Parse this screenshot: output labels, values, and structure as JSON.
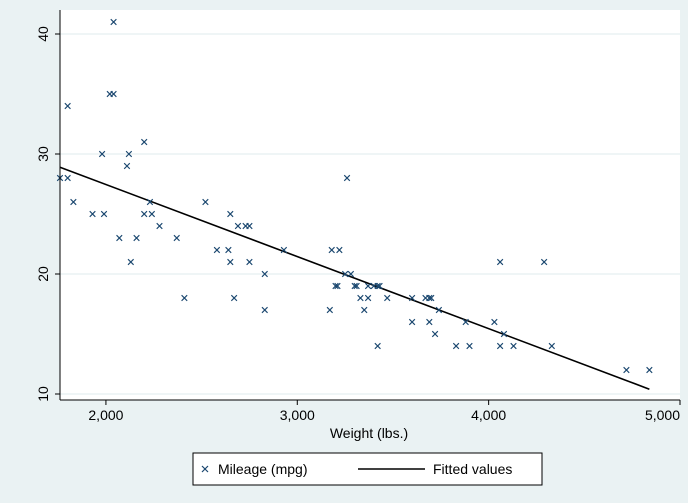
{
  "chart_data": {
    "type": "scatter",
    "xlabel": "Weight (lbs.)",
    "ylabel": "",
    "xlim": [
      1760,
      5000
    ],
    "ylim": [
      9.5,
      42
    ],
    "xticks": [
      2000,
      3000,
      4000,
      5000
    ],
    "xtick_labels": [
      "2,000",
      "3,000",
      "4,000",
      "5,000"
    ],
    "yticks": [
      10,
      20,
      30,
      40
    ],
    "ytick_labels": [
      "10",
      "20",
      "30",
      "40"
    ],
    "grid": true,
    "legend": "bottom",
    "series": [
      {
        "name": "Mileage (mpg)",
        "type": "scatter",
        "marker": "x",
        "color": "#1a476f",
        "points": [
          [
            1760,
            28
          ],
          [
            1800,
            28
          ],
          [
            1800,
            34
          ],
          [
            1830,
            26
          ],
          [
            1930,
            25
          ],
          [
            1980,
            30
          ],
          [
            1990,
            25
          ],
          [
            2020,
            35
          ],
          [
            2040,
            35
          ],
          [
            2040,
            41
          ],
          [
            2070,
            23
          ],
          [
            2110,
            29
          ],
          [
            2120,
            30
          ],
          [
            2130,
            21
          ],
          [
            2160,
            23
          ],
          [
            2200,
            31
          ],
          [
            2200,
            25
          ],
          [
            2230,
            26
          ],
          [
            2240,
            25
          ],
          [
            2280,
            24
          ],
          [
            2370,
            23
          ],
          [
            2410,
            18
          ],
          [
            2520,
            26
          ],
          [
            2580,
            22
          ],
          [
            2640,
            22
          ],
          [
            2650,
            25
          ],
          [
            2650,
            21
          ],
          [
            2670,
            18
          ],
          [
            2690,
            24
          ],
          [
            2730,
            24
          ],
          [
            2750,
            24
          ],
          [
            2750,
            21
          ],
          [
            2830,
            20
          ],
          [
            2830,
            17
          ],
          [
            2930,
            22
          ],
          [
            3170,
            17
          ],
          [
            3180,
            22
          ],
          [
            3200,
            19
          ],
          [
            3210,
            19
          ],
          [
            3220,
            22
          ],
          [
            3250,
            20
          ],
          [
            3260,
            28
          ],
          [
            3280,
            20
          ],
          [
            3300,
            19
          ],
          [
            3310,
            19
          ],
          [
            3330,
            18
          ],
          [
            3350,
            17
          ],
          [
            3370,
            18
          ],
          [
            3370,
            19
          ],
          [
            3400,
            19
          ],
          [
            3420,
            19
          ],
          [
            3420,
            14
          ],
          [
            3430,
            19
          ],
          [
            3470,
            18
          ],
          [
            3600,
            18
          ],
          [
            3600,
            16
          ],
          [
            3670,
            18
          ],
          [
            3690,
            18
          ],
          [
            3690,
            16
          ],
          [
            3700,
            18
          ],
          [
            3720,
            15
          ],
          [
            3740,
            17
          ],
          [
            3830,
            14
          ],
          [
            3880,
            16
          ],
          [
            3900,
            14
          ],
          [
            4030,
            16
          ],
          [
            4060,
            14
          ],
          [
            4060,
            21
          ],
          [
            4080,
            15
          ],
          [
            4130,
            14
          ],
          [
            4290,
            21
          ],
          [
            4330,
            14
          ],
          [
            4720,
            12
          ],
          [
            4840,
            12
          ]
        ]
      },
      {
        "name": "Fitted values",
        "type": "line",
        "color": "#000000",
        "points": [
          [
            1760,
            28.9
          ],
          [
            4840,
            10.4
          ]
        ]
      }
    ]
  }
}
